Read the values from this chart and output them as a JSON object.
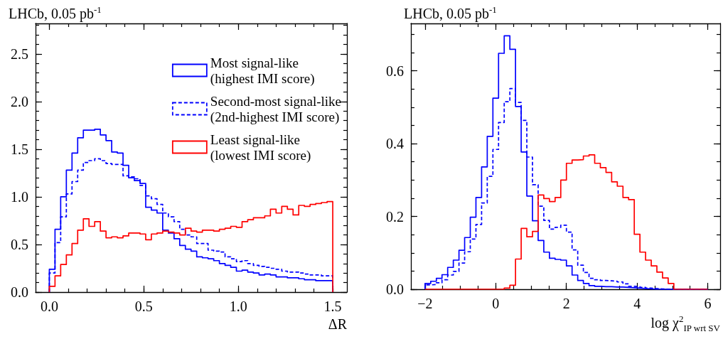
{
  "chart_data": [
    {
      "type": "histogram",
      "title": "LHCb, 0.05 pb$^{-1}$",
      "xlabel": "ΔR",
      "bins": [
        0,
        0.03,
        0.06,
        0.09,
        0.12,
        0.15,
        0.18,
        0.21,
        0.24,
        0.27,
        0.3,
        0.33,
        0.36,
        0.39,
        0.42,
        0.45,
        0.48,
        0.51,
        0.54,
        0.57,
        0.6,
        0.63,
        0.66,
        0.69,
        0.72,
        0.75,
        0.78,
        0.81,
        0.84,
        0.87,
        0.9,
        0.93,
        0.96,
        0.99,
        1.02,
        1.05,
        1.08,
        1.11,
        1.14,
        1.17,
        1.2,
        1.23,
        1.26,
        1.29,
        1.32,
        1.35,
        1.38,
        1.41,
        1.44,
        1.47,
        1.5
      ],
      "series": [
        {
          "name": "Most signal-like (highest IMI score)",
          "color": "#0000ff",
          "line_style": "solid",
          "values": [
            0.24,
            0.66,
            1.0,
            1.28,
            1.46,
            1.62,
            1.7,
            1.7,
            1.71,
            1.65,
            1.59,
            1.47,
            1.46,
            1.33,
            1.2,
            1.17,
            1.14,
            0.89,
            0.86,
            0.83,
            0.65,
            0.62,
            0.56,
            0.49,
            0.45,
            0.43,
            0.37,
            0.36,
            0.35,
            0.33,
            0.3,
            0.28,
            0.26,
            0.22,
            0.23,
            0.21,
            0.2,
            0.18,
            0.19,
            0.18,
            0.16,
            0.16,
            0.15,
            0.15,
            0.14,
            0.13,
            0.13,
            0.12,
            0.12,
            0.12
          ]
        },
        {
          "name": "Second-most signal-like (2nd-highest IMI score)",
          "color": "#0000ff",
          "line_style": "dashed",
          "values": [
            0.2,
            0.52,
            0.79,
            1.03,
            1.16,
            1.28,
            1.36,
            1.38,
            1.4,
            1.38,
            1.35,
            1.34,
            1.34,
            1.22,
            1.21,
            1.19,
            1.12,
            1.01,
            0.98,
            0.92,
            0.83,
            0.79,
            0.74,
            0.66,
            0.6,
            0.58,
            0.51,
            0.51,
            0.44,
            0.43,
            0.42,
            0.37,
            0.35,
            0.32,
            0.33,
            0.3,
            0.28,
            0.27,
            0.26,
            0.25,
            0.24,
            0.22,
            0.21,
            0.21,
            0.2,
            0.19,
            0.18,
            0.18,
            0.17,
            0.17
          ]
        },
        {
          "name": "Least signal-like (lowest IMI score)",
          "color": "#ff0000",
          "line_style": "solid",
          "values": [
            0.06,
            0.17,
            0.29,
            0.39,
            0.51,
            0.65,
            0.77,
            0.69,
            0.74,
            0.64,
            0.57,
            0.58,
            0.57,
            0.59,
            0.62,
            0.62,
            0.61,
            0.55,
            0.61,
            0.62,
            0.64,
            0.63,
            0.62,
            0.6,
            0.67,
            0.64,
            0.63,
            0.65,
            0.65,
            0.64,
            0.66,
            0.67,
            0.69,
            0.68,
            0.74,
            0.76,
            0.78,
            0.78,
            0.8,
            0.87,
            0.83,
            0.9,
            0.87,
            0.81,
            0.91,
            0.9,
            0.92,
            0.93,
            0.94,
            0.95
          ]
        }
      ],
      "xlim": [
        -0.073,
        1.575
      ],
      "xticks": [
        {
          "value": 0,
          "label": "0.0"
        },
        0.5,
        {
          "value": 1,
          "label": "1.0"
        },
        1.5
      ],
      "ylim": [
        0,
        2.82
      ],
      "yticks": [
        {
          "value": 0,
          "label": "0.0"
        },
        0.5,
        {
          "value": 1,
          "label": "1.0"
        },
        1.5,
        {
          "value": 2,
          "label": "2.0"
        },
        2.5
      ],
      "legend": "top right"
    },
    {
      "type": "histogram",
      "title": "LHCb, 0.05 pb$^{-1}$",
      "xlabel": "log χ$^{2}$$_{IP wrt SV}$",
      "bins": [
        -2,
        -1.84,
        -1.68,
        -1.52,
        -1.36,
        -1.2,
        -1.04,
        -0.88,
        -0.72,
        -0.56,
        -0.4,
        -0.24,
        -0.08,
        0.08,
        0.24,
        0.4,
        0.56,
        0.72,
        0.88,
        1.04,
        1.2,
        1.36,
        1.52,
        1.68,
        1.84,
        2,
        2.16,
        2.32,
        2.48,
        2.64,
        2.8,
        2.96,
        3.12,
        3.28,
        3.44,
        3.6,
        3.76,
        3.92,
        4.08,
        4.24,
        4.4,
        4.56,
        4.72,
        4.88,
        5.04,
        5.2,
        5.36,
        5.52,
        5.68,
        5.84,
        6
      ],
      "series": [
        {
          "color": "#0000ff",
          "line_style": "solid",
          "values": [
            0.016,
            0.022,
            0.03,
            0.04,
            0.06,
            0.08,
            0.107,
            0.142,
            0.198,
            0.252,
            0.336,
            0.42,
            0.525,
            0.648,
            0.696,
            0.659,
            0.502,
            0.377,
            0.256,
            0.188,
            0.134,
            0.102,
            0.085,
            0.082,
            0.08,
            0.064,
            0.039,
            0.024,
            0.016,
            0.01,
            0.008,
            0.007,
            0.007,
            0.006,
            0.006,
            0.005,
            0.004,
            0.003,
            0.002,
            0.001,
            0,
            0,
            0,
            0,
            0,
            0,
            0,
            0,
            0,
            0
          ]
        },
        {
          "color": "#0000ff",
          "line_style": "dashed",
          "values": [
            0.012,
            0.013,
            0.018,
            0.026,
            0.039,
            0.049,
            0.072,
            0.103,
            0.138,
            0.178,
            0.237,
            0.31,
            0.384,
            0.458,
            0.515,
            0.551,
            0.513,
            0.464,
            0.363,
            0.287,
            0.228,
            0.189,
            0.165,
            0.17,
            0.176,
            0.157,
            0.108,
            0.066,
            0.046,
            0.03,
            0.026,
            0.024,
            0.023,
            0.022,
            0.02,
            0.015,
            0.008,
            0.007,
            0.005,
            0.003,
            0.002,
            0.001,
            0,
            0,
            0,
            0,
            0,
            0,
            0,
            0
          ]
        },
        {
          "color": "#ff0000",
          "line_style": "solid",
          "values": [
            0,
            0,
            0,
            0,
            0,
            0,
            0,
            0,
            0,
            0,
            0,
            0,
            0,
            0,
            0.003,
            0.011,
            0.083,
            0.167,
            0.144,
            0.159,
            0.259,
            0.249,
            0.241,
            0.252,
            0.3,
            0.346,
            0.355,
            0.356,
            0.366,
            0.369,
            0.346,
            0.334,
            0.321,
            0.295,
            0.283,
            0.252,
            0.246,
            0.151,
            0.102,
            0.08,
            0.064,
            0.047,
            0.031,
            0.016,
            0,
            0,
            0,
            0,
            0,
            0
          ]
        }
      ],
      "xlim": [
        -2.4,
        6.35
      ],
      "xticks": [
        -2,
        0,
        2,
        4,
        6
      ],
      "ylim": [
        0,
        0.73
      ],
      "yticks": [
        {
          "value": 0,
          "label": "0.0"
        },
        0.2,
        0.4,
        0.6
      ]
    }
  ]
}
